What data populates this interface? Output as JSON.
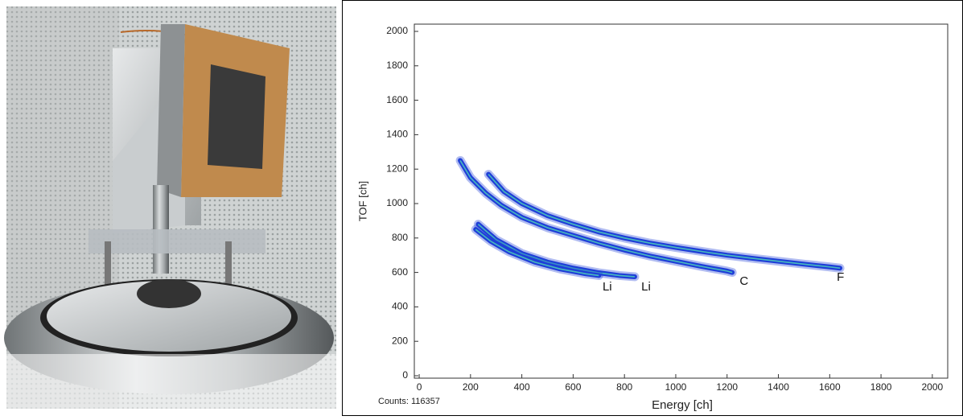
{
  "chart_data": {
    "type": "scatter",
    "x_label": "Energy [ch]",
    "y_label": "TOF [ch]",
    "footer": "Counts: 116357",
    "xlim": [
      -19,
      2060
    ],
    "ylim": [
      -14,
      2042
    ],
    "xticks": [
      0,
      200,
      400,
      600,
      800,
      1000,
      1200,
      1400,
      1600,
      1800,
      2000
    ],
    "yticks": [
      0,
      200,
      400,
      600,
      800,
      1000,
      1200,
      1400,
      1600,
      1800,
      2000
    ],
    "series": [
      {
        "name": "F",
        "color": "#1f3fd8",
        "x": [
          270,
          330,
          400,
          500,
          600,
          700,
          800,
          900,
          1000,
          1100,
          1200,
          1300,
          1400,
          1500,
          1600,
          1640
        ],
        "y": [
          1170,
          1070,
          1000,
          930,
          880,
          835,
          800,
          770,
          745,
          722,
          700,
          682,
          665,
          648,
          632,
          625
        ]
      },
      {
        "name": "C",
        "color": "#1f3fd8",
        "x": [
          160,
          200,
          260,
          320,
          400,
          500,
          600,
          700,
          800,
          900,
          1000,
          1100,
          1200,
          1220
        ],
        "y": [
          1250,
          1150,
          1060,
          990,
          920,
          860,
          815,
          770,
          730,
          695,
          665,
          635,
          608,
          600
        ]
      },
      {
        "name": "Li",
        "color": "#1f3fd8",
        "x": [
          230,
          300,
          400,
          500,
          600,
          700,
          780,
          840
        ],
        "y": [
          880,
          790,
          710,
          660,
          625,
          598,
          582,
          575
        ]
      },
      {
        "name": "Li",
        "color": "#1f3fd8",
        "x": [
          220,
          280,
          350,
          450,
          550,
          650,
          700
        ],
        "y": [
          850,
          780,
          720,
          660,
          620,
          592,
          582
        ]
      }
    ],
    "annotations": [
      {
        "text": "Li",
        "x": 733,
        "y": 514
      },
      {
        "text": "Li",
        "x": 884,
        "y": 514
      },
      {
        "text": "C",
        "x": 1266,
        "y": 547
      },
      {
        "text": "F",
        "x": 1642,
        "y": 570
      }
    ]
  }
}
